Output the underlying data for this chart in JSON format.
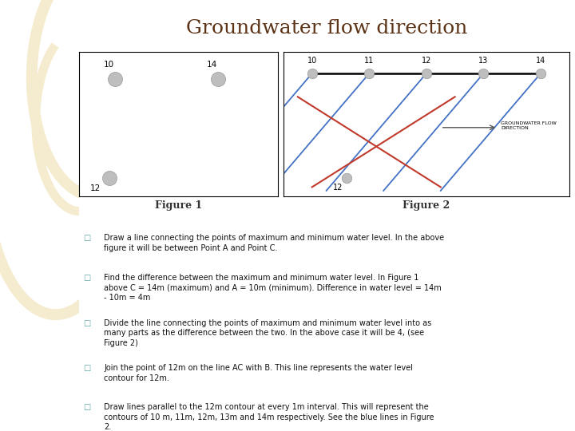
{
  "title": "Groundwater flow direction",
  "title_color": "#5C3317",
  "title_fontsize": 18,
  "bg_color": "#FFFFFF",
  "sidebar_color": "#EDD9A3",
  "sidebar_arc_color": "#F5ECD0",
  "fig1_caption": "Figure 1",
  "fig2_caption": "Figure 2",
  "bullet_color": "#5BA4A4",
  "bullet_texts": [
    "Draw a line connecting the points of maximum and minimum water level. In the above\nfigure it will be between Point A and Point C.",
    "Find the difference between the maximum and minimum water level. In Figure 1\nabove C = 14m (maximum) and A = 10m (minimum). Difference in water level = 14m\n- 10m = 4m",
    "Divide the line connecting the points of maximum and minimum water level into as\nmany parts as the difference between the two. In the above case it will be 4, (see\nFigure 2)",
    "Join the point of 12m on the line AC with B. This line represents the water level\ncontour for 12m.",
    "Draw lines parallel to the 12m contour at every 1m interval. This will represent the\ncontours of 10 m, 11m, 12m, 13m and 14m respectively. See the blue lines in Figure\n2."
  ],
  "groundwater_label": "GROUNDWATER FLOW\nDIRECTION",
  "blue_line_color": "#4472C4",
  "red_line_color": "#C0392B",
  "point_color": "#BEBEBE"
}
